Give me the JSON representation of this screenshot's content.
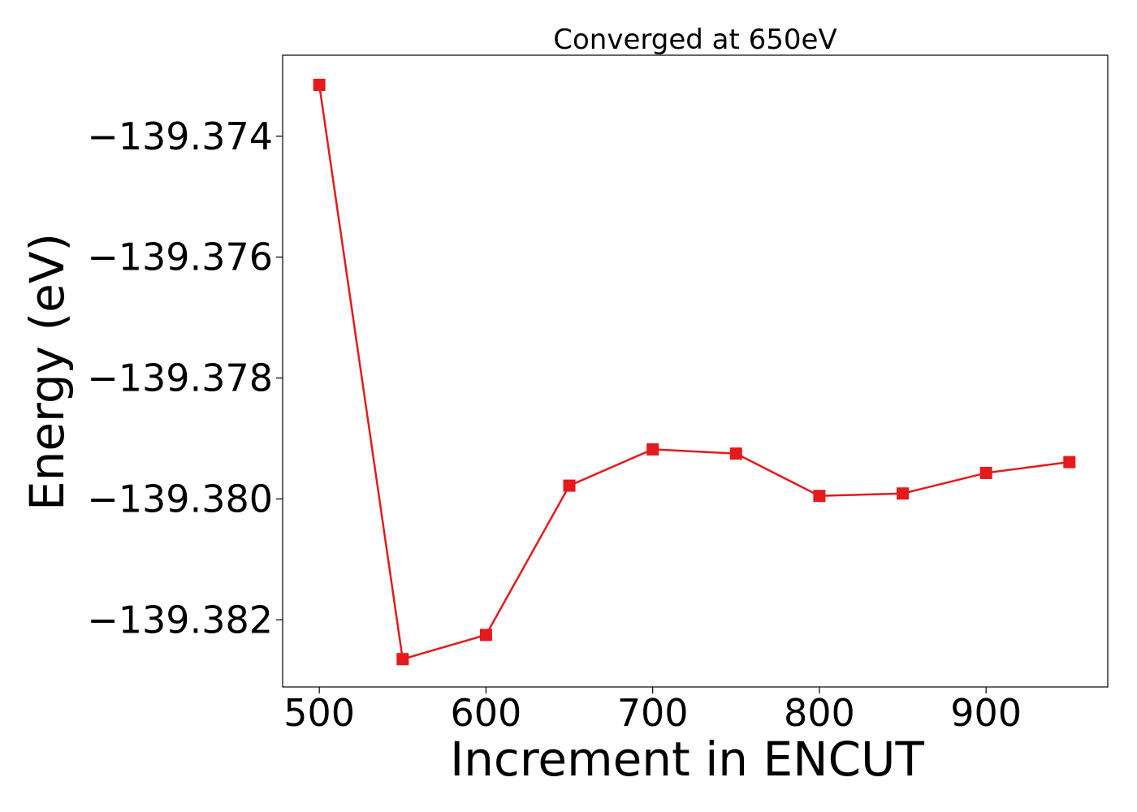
{
  "chart_data": {
    "type": "line",
    "title": "Converged at 650eV",
    "xlabel": "Increment in ENCUT",
    "ylabel": "Energy (eV)",
    "x": [
      500,
      550,
      600,
      650,
      700,
      750,
      800,
      850,
      900,
      950
    ],
    "series": [
      {
        "values": [
          -139.37315,
          -139.38265,
          -139.38225,
          -139.37978,
          -139.37918,
          -139.37925,
          -139.37995,
          -139.37991,
          -139.37957,
          -139.37939
        ],
        "color": "#e41a1c",
        "marker": "square"
      }
    ],
    "xlim": [
      478,
      973
    ],
    "ylim": [
      -139.38311,
      -139.37266
    ],
    "xticks": [
      500,
      600,
      700,
      800,
      900
    ],
    "xtick_labels": [
      "500",
      "600",
      "700",
      "800",
      "900"
    ],
    "yticks": [
      -139.374,
      -139.376,
      -139.378,
      -139.38,
      -139.382
    ],
    "ytick_labels": [
      "−139.374",
      "−139.376",
      "−139.378",
      "−139.380",
      "−139.382"
    ],
    "grid": false,
    "legend": false
  }
}
